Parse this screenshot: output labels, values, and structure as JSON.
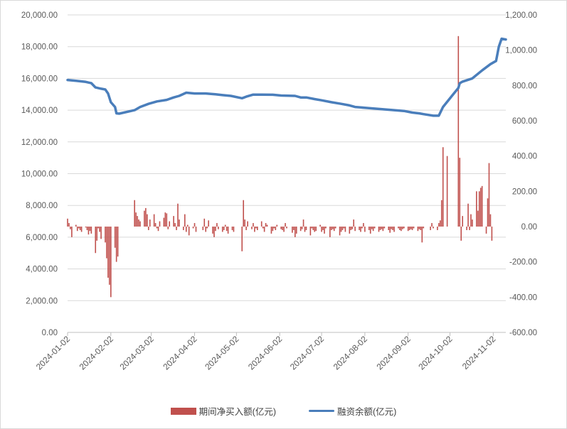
{
  "chart_data": {
    "type": "bar+line",
    "x_tick_labels": [
      "2024-01-02",
      "2024-02-02",
      "2024-03-02",
      "2024-04-02",
      "2024-05-02",
      "2024-06-02",
      "2024-07-02",
      "2024-08-02",
      "2024-09-02",
      "2024-10-02",
      "2024-11-02"
    ],
    "y_left": {
      "ticks": [
        "0.00",
        "2,000.00",
        "4,000.00",
        "6,000.00",
        "8,000.00",
        "10,000.00",
        "12,000.00",
        "14,000.00",
        "16,000.00",
        "18,000.00",
        "20,000.00"
      ],
      "range": [
        0,
        20000
      ]
    },
    "y_right": {
      "ticks": [
        "-600.00",
        "-400.00",
        "-200.00",
        "0.00",
        "200.00",
        "400.00",
        "600.00",
        "800.00",
        "1,000.00",
        "1,200.00"
      ],
      "range": [
        -600,
        1200
      ]
    },
    "series": [
      {
        "name": "期间净买入额(亿元)",
        "type": "bar",
        "axis": "right",
        "color": "#c0504d",
        "points": [
          [
            "2024-01-02",
            45
          ],
          [
            "2024-01-03",
            20
          ],
          [
            "2024-01-04",
            -15
          ],
          [
            "2024-01-05",
            -60
          ],
          [
            "2024-01-08",
            10
          ],
          [
            "2024-01-09",
            -25
          ],
          [
            "2024-01-10",
            -10
          ],
          [
            "2024-01-11",
            -20
          ],
          [
            "2024-01-12",
            -30
          ],
          [
            "2024-01-15",
            -5
          ],
          [
            "2024-01-16",
            -20
          ],
          [
            "2024-01-17",
            -45
          ],
          [
            "2024-01-18",
            -25
          ],
          [
            "2024-01-19",
            -40
          ],
          [
            "2024-01-22",
            -150
          ],
          [
            "2024-01-23",
            -80
          ],
          [
            "2024-01-24",
            -10
          ],
          [
            "2024-01-25",
            -30
          ],
          [
            "2024-01-26",
            -70
          ],
          [
            "2024-01-29",
            -90
          ],
          [
            "2024-01-30",
            -180
          ],
          [
            "2024-01-31",
            -290
          ],
          [
            "2024-02-01",
            -330
          ],
          [
            "2024-02-02",
            -400
          ],
          [
            "2024-02-05",
            -120
          ],
          [
            "2024-02-06",
            -200
          ],
          [
            "2024-02-07",
            -170
          ],
          [
            "2024-02-19",
            150
          ],
          [
            "2024-02-20",
            80
          ],
          [
            "2024-02-21",
            60
          ],
          [
            "2024-02-22",
            40
          ],
          [
            "2024-02-23",
            30
          ],
          [
            "2024-02-26",
            90
          ],
          [
            "2024-02-27",
            105
          ],
          [
            "2024-02-28",
            70
          ],
          [
            "2024-02-29",
            -20
          ],
          [
            "2024-03-01",
            40
          ],
          [
            "2024-03-04",
            70
          ],
          [
            "2024-03-05",
            20
          ],
          [
            "2024-03-06",
            -10
          ],
          [
            "2024-03-07",
            -25
          ],
          [
            "2024-03-08",
            30
          ],
          [
            "2024-03-11",
            50
          ],
          [
            "2024-03-12",
            80
          ],
          [
            "2024-03-13",
            75
          ],
          [
            "2024-03-14",
            -15
          ],
          [
            "2024-03-15",
            30
          ],
          [
            "2024-03-18",
            60
          ],
          [
            "2024-03-19",
            20
          ],
          [
            "2024-03-20",
            -20
          ],
          [
            "2024-03-21",
            130
          ],
          [
            "2024-03-22",
            40
          ],
          [
            "2024-03-25",
            -20
          ],
          [
            "2024-03-26",
            70
          ],
          [
            "2024-03-27",
            -30
          ],
          [
            "2024-03-28",
            10
          ],
          [
            "2024-03-29",
            -50
          ],
          [
            "2024-04-01",
            -10
          ],
          [
            "2024-04-02",
            20
          ],
          [
            "2024-04-03",
            -30
          ],
          [
            "2024-04-08",
            -20
          ],
          [
            "2024-04-09",
            45
          ],
          [
            "2024-04-10",
            -30
          ],
          [
            "2024-04-11",
            -10
          ],
          [
            "2024-04-12",
            35
          ],
          [
            "2024-04-15",
            -40
          ],
          [
            "2024-04-16",
            -60
          ],
          [
            "2024-04-17",
            -25
          ],
          [
            "2024-04-18",
            20
          ],
          [
            "2024-04-19",
            -15
          ],
          [
            "2024-04-22",
            -30
          ],
          [
            "2024-04-23",
            -20
          ],
          [
            "2024-04-24",
            10
          ],
          [
            "2024-04-25",
            -25
          ],
          [
            "2024-04-26",
            -40
          ],
          [
            "2024-04-29",
            -20
          ],
          [
            "2024-04-30",
            -30
          ],
          [
            "2024-05-06",
            -140
          ],
          [
            "2024-05-07",
            150
          ],
          [
            "2024-05-08",
            40
          ],
          [
            "2024-05-09",
            -20
          ],
          [
            "2024-05-10",
            30
          ],
          [
            "2024-05-13",
            -15
          ],
          [
            "2024-05-14",
            20
          ],
          [
            "2024-05-15",
            -30
          ],
          [
            "2024-05-16",
            -10
          ],
          [
            "2024-05-17",
            -20
          ],
          [
            "2024-05-20",
            30
          ],
          [
            "2024-05-21",
            -10
          ],
          [
            "2024-05-22",
            -30
          ],
          [
            "2024-05-23",
            20
          ],
          [
            "2024-05-24",
            10
          ],
          [
            "2024-05-27",
            -40
          ],
          [
            "2024-05-28",
            -25
          ],
          [
            "2024-05-29",
            -10
          ],
          [
            "2024-05-30",
            -20
          ],
          [
            "2024-05-31",
            10
          ],
          [
            "2024-06-03",
            -15
          ],
          [
            "2024-06-04",
            -20
          ],
          [
            "2024-06-05",
            -30
          ],
          [
            "2024-06-06",
            20
          ],
          [
            "2024-06-07",
            -10
          ],
          [
            "2024-06-11",
            -35
          ],
          [
            "2024-06-12",
            -20
          ],
          [
            "2024-06-13",
            -60
          ],
          [
            "2024-06-14",
            -40
          ],
          [
            "2024-06-17",
            -25
          ],
          [
            "2024-06-18",
            -15
          ],
          [
            "2024-06-19",
            40
          ],
          [
            "2024-06-20",
            -30
          ],
          [
            "2024-06-21",
            -20
          ],
          [
            "2024-06-24",
            -50
          ],
          [
            "2024-06-25",
            -10
          ],
          [
            "2024-06-26",
            -20
          ],
          [
            "2024-06-27",
            -30
          ],
          [
            "2024-06-28",
            -25
          ],
          [
            "2024-07-01",
            10
          ],
          [
            "2024-07-02",
            -30
          ],
          [
            "2024-07-03",
            -20
          ],
          [
            "2024-07-04",
            -40
          ],
          [
            "2024-07-05",
            -10
          ],
          [
            "2024-07-08",
            -60
          ],
          [
            "2024-07-09",
            -20
          ],
          [
            "2024-07-10",
            -15
          ],
          [
            "2024-07-11",
            -25
          ],
          [
            "2024-07-12",
            -10
          ],
          [
            "2024-07-15",
            -50
          ],
          [
            "2024-07-16",
            -30
          ],
          [
            "2024-07-17",
            -20
          ],
          [
            "2024-07-18",
            -10
          ],
          [
            "2024-07-19",
            -30
          ],
          [
            "2024-07-22",
            -40
          ],
          [
            "2024-07-23",
            -20
          ],
          [
            "2024-07-24",
            -15
          ],
          [
            "2024-07-25",
            40
          ],
          [
            "2024-07-26",
            -25
          ],
          [
            "2024-07-29",
            -20
          ],
          [
            "2024-07-30",
            -30
          ],
          [
            "2024-07-31",
            -10
          ],
          [
            "2024-08-01",
            20
          ],
          [
            "2024-08-02",
            -30
          ],
          [
            "2024-08-05",
            -20
          ],
          [
            "2024-08-06",
            -40
          ],
          [
            "2024-08-07",
            -15
          ],
          [
            "2024-08-08",
            -25
          ],
          [
            "2024-08-09",
            -10
          ],
          [
            "2024-08-12",
            -30
          ],
          [
            "2024-08-13",
            -20
          ],
          [
            "2024-08-14",
            -15
          ],
          [
            "2024-08-15",
            -25
          ],
          [
            "2024-08-16",
            -10
          ],
          [
            "2024-08-19",
            -20
          ],
          [
            "2024-08-20",
            -35
          ],
          [
            "2024-08-21",
            -15
          ],
          [
            "2024-08-22",
            -20
          ],
          [
            "2024-08-23",
            -30
          ],
          [
            "2024-08-26",
            -10
          ],
          [
            "2024-08-27",
            -20
          ],
          [
            "2024-08-28",
            -25
          ],
          [
            "2024-08-29",
            -15
          ],
          [
            "2024-08-30",
            -10
          ],
          [
            "2024-09-02",
            -25
          ],
          [
            "2024-09-03",
            -20
          ],
          [
            "2024-09-04",
            -15
          ],
          [
            "2024-09-05",
            -20
          ],
          [
            "2024-09-06",
            -10
          ],
          [
            "2024-09-09",
            -25
          ],
          [
            "2024-09-10",
            -15
          ],
          [
            "2024-09-11",
            -20
          ],
          [
            "2024-09-12",
            -90
          ],
          [
            "2024-09-13",
            -10
          ],
          [
            "2024-09-18",
            -20
          ],
          [
            "2024-09-19",
            20
          ],
          [
            "2024-09-20",
            -10
          ],
          [
            "2024-09-23",
            -20
          ],
          [
            "2024-09-24",
            20
          ],
          [
            "2024-09-25",
            35
          ],
          [
            "2024-09-26",
            150
          ],
          [
            "2024-09-27",
            450
          ],
          [
            "2024-09-30",
            400
          ],
          [
            "2024-10-08",
            1080
          ],
          [
            "2024-10-09",
            390
          ],
          [
            "2024-10-10",
            -80
          ],
          [
            "2024-10-11",
            60
          ],
          [
            "2024-10-14",
            -20
          ],
          [
            "2024-10-15",
            130
          ],
          [
            "2024-10-16",
            -20
          ],
          [
            "2024-10-17",
            70
          ],
          [
            "2024-10-18",
            40
          ],
          [
            "2024-10-21",
            200
          ],
          [
            "2024-10-22",
            90
          ],
          [
            "2024-10-23",
            200
          ],
          [
            "2024-10-24",
            220
          ],
          [
            "2024-10-25",
            230
          ],
          [
            "2024-10-28",
            -40
          ],
          [
            "2024-10-29",
            160
          ],
          [
            "2024-10-30",
            360
          ],
          [
            "2024-10-31",
            70
          ],
          [
            "2024-11-01",
            -80
          ]
        ]
      },
      {
        "name": "融资余额(亿元)",
        "type": "line",
        "axis": "left",
        "color": "#4a7ebb",
        "points": [
          [
            "2024-01-02",
            15900
          ],
          [
            "2024-01-08",
            15850
          ],
          [
            "2024-01-15",
            15780
          ],
          [
            "2024-01-19",
            15700
          ],
          [
            "2024-01-22",
            15430
          ],
          [
            "2024-01-26",
            15350
          ],
          [
            "2024-01-29",
            15300
          ],
          [
            "2024-01-31",
            15050
          ],
          [
            "2024-02-02",
            14500
          ],
          [
            "2024-02-05",
            14200
          ],
          [
            "2024-02-06",
            13800
          ],
          [
            "2024-02-08",
            13780
          ],
          [
            "2024-02-19",
            14000
          ],
          [
            "2024-02-23",
            14200
          ],
          [
            "2024-02-29",
            14400
          ],
          [
            "2024-03-06",
            14550
          ],
          [
            "2024-03-13",
            14650
          ],
          [
            "2024-03-18",
            14800
          ],
          [
            "2024-03-22",
            14900
          ],
          [
            "2024-03-27",
            15100
          ],
          [
            "2024-04-02",
            15050
          ],
          [
            "2024-04-10",
            15050
          ],
          [
            "2024-04-17",
            15000
          ],
          [
            "2024-04-22",
            14950
          ],
          [
            "2024-04-28",
            14900
          ],
          [
            "2024-05-06",
            14750
          ],
          [
            "2024-05-09",
            14850
          ],
          [
            "2024-05-14",
            14980
          ],
          [
            "2024-05-20",
            14980
          ],
          [
            "2024-05-28",
            14970
          ],
          [
            "2024-06-03",
            14920
          ],
          [
            "2024-06-13",
            14900
          ],
          [
            "2024-06-17",
            14800
          ],
          [
            "2024-06-21",
            14800
          ],
          [
            "2024-06-27",
            14700
          ],
          [
            "2024-07-02",
            14620
          ],
          [
            "2024-07-09",
            14500
          ],
          [
            "2024-07-16",
            14400
          ],
          [
            "2024-07-22",
            14300
          ],
          [
            "2024-07-26",
            14200
          ],
          [
            "2024-08-02",
            14150
          ],
          [
            "2024-08-09",
            14100
          ],
          [
            "2024-08-16",
            14050
          ],
          [
            "2024-08-23",
            14000
          ],
          [
            "2024-08-30",
            13950
          ],
          [
            "2024-09-05",
            13850
          ],
          [
            "2024-09-10",
            13800
          ],
          [
            "2024-09-13",
            13750
          ],
          [
            "2024-09-20",
            13650
          ],
          [
            "2024-09-24",
            13650
          ],
          [
            "2024-09-27",
            14200
          ],
          [
            "2024-10-08",
            15400
          ],
          [
            "2024-10-09",
            15700
          ],
          [
            "2024-10-11",
            15800
          ],
          [
            "2024-10-18",
            16000
          ],
          [
            "2024-10-25",
            16500
          ],
          [
            "2024-10-31",
            16900
          ],
          [
            "2024-11-04",
            17100
          ],
          [
            "2024-11-06",
            18000
          ],
          [
            "2024-11-08",
            18500
          ],
          [
            "2024-11-11",
            18450
          ]
        ]
      }
    ],
    "grid": true,
    "legend_position": "bottom"
  },
  "legend": {
    "bar_label": "期间净买入额(亿元)",
    "line_label": "融资余额(亿元)"
  }
}
